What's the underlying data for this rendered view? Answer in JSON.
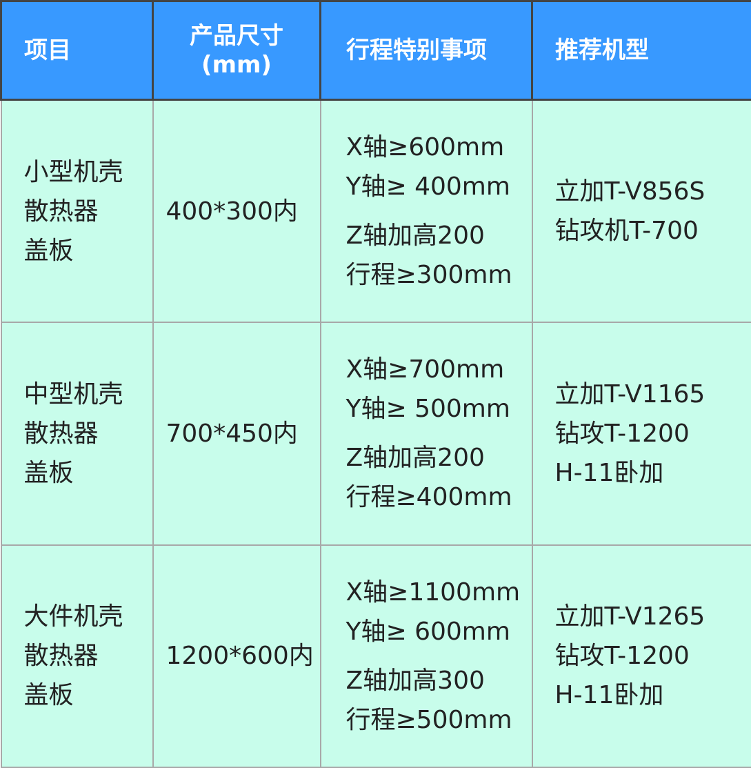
{
  "header": [
    "项目",
    "产品尺寸\n(mm)",
    "行程特别事项",
    "推荐机型"
  ],
  "header_parts": {
    "size_line1": "产品尺寸",
    "size_line2": "(mm)"
  },
  "rows": [
    {
      "item": [
        "小型机壳",
        "散热器",
        "盖板"
      ],
      "size": "400*300内",
      "travel": [
        "X轴≥600mm",
        "Y轴≥ 400mm",
        "Z轴加高200",
        "行程≥300mm"
      ],
      "models": [
        "立加T-V856S",
        "钻攻机T-700"
      ]
    },
    {
      "item": [
        "中型机壳",
        "散热器",
        "盖板"
      ],
      "size": "700*450内",
      "travel": [
        "X轴≥700mm",
        "Y轴≥ 500mm",
        "Z轴加高200",
        "行程≥400mm"
      ],
      "models": [
        "立加T-V1165",
        "钻攻T-1200",
        "H-11卧加"
      ]
    },
    {
      "item": [
        "大件机壳",
        "散热器",
        "盖板"
      ],
      "size": "1200*600内",
      "travel": [
        "X轴≥1100mm",
        "Y轴≥ 600mm",
        "Z轴加高300",
        "行程≥500mm"
      ],
      "models": [
        "立加T-V1265",
        "钻攻T-1200",
        "H-11卧加"
      ]
    }
  ],
  "colors": {
    "header_bg": "#3899ff",
    "body_bg": "#c8fdeb"
  }
}
